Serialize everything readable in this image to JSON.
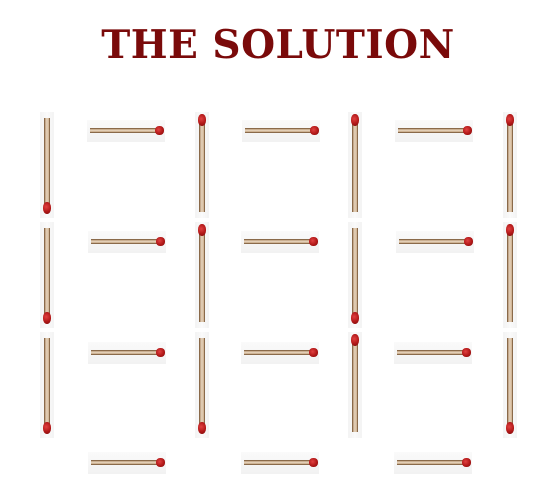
{
  "title": "THE SOLUTION",
  "colors": {
    "title": "#7a0a0a",
    "match_head": "#b11818",
    "match_stick": "#e6d3bd",
    "background": "#ffffff"
  },
  "puzzle": {
    "matches": [
      {
        "orientation": "vertical",
        "head": "bottom"
      },
      {
        "orientation": "horizontal",
        "head": "right"
      },
      {
        "orientation": "vertical",
        "head": "top"
      },
      {
        "orientation": "horizontal",
        "head": "right"
      },
      {
        "orientation": "vertical",
        "head": "top"
      },
      {
        "orientation": "horizontal",
        "head": "right"
      },
      {
        "orientation": "vertical",
        "head": "top"
      },
      {
        "orientation": "vertical",
        "head": "bottom"
      },
      {
        "orientation": "horizontal",
        "head": "right"
      },
      {
        "orientation": "vertical",
        "head": "top"
      },
      {
        "orientation": "horizontal",
        "head": "right"
      },
      {
        "orientation": "vertical",
        "head": "bottom"
      },
      {
        "orientation": "horizontal",
        "head": "right"
      },
      {
        "orientation": "vertical",
        "head": "top"
      },
      {
        "orientation": "vertical",
        "head": "bottom"
      },
      {
        "orientation": "horizontal",
        "head": "right"
      },
      {
        "orientation": "vertical",
        "head": "bottom"
      },
      {
        "orientation": "horizontal",
        "head": "right"
      },
      {
        "orientation": "vertical",
        "head": "top"
      },
      {
        "orientation": "horizontal",
        "head": "right"
      },
      {
        "orientation": "vertical",
        "head": "bottom"
      },
      {
        "orientation": "horizontal",
        "head": "right"
      },
      {
        "orientation": "horizontal",
        "head": "right"
      },
      {
        "orientation": "horizontal",
        "head": "right"
      }
    ]
  }
}
